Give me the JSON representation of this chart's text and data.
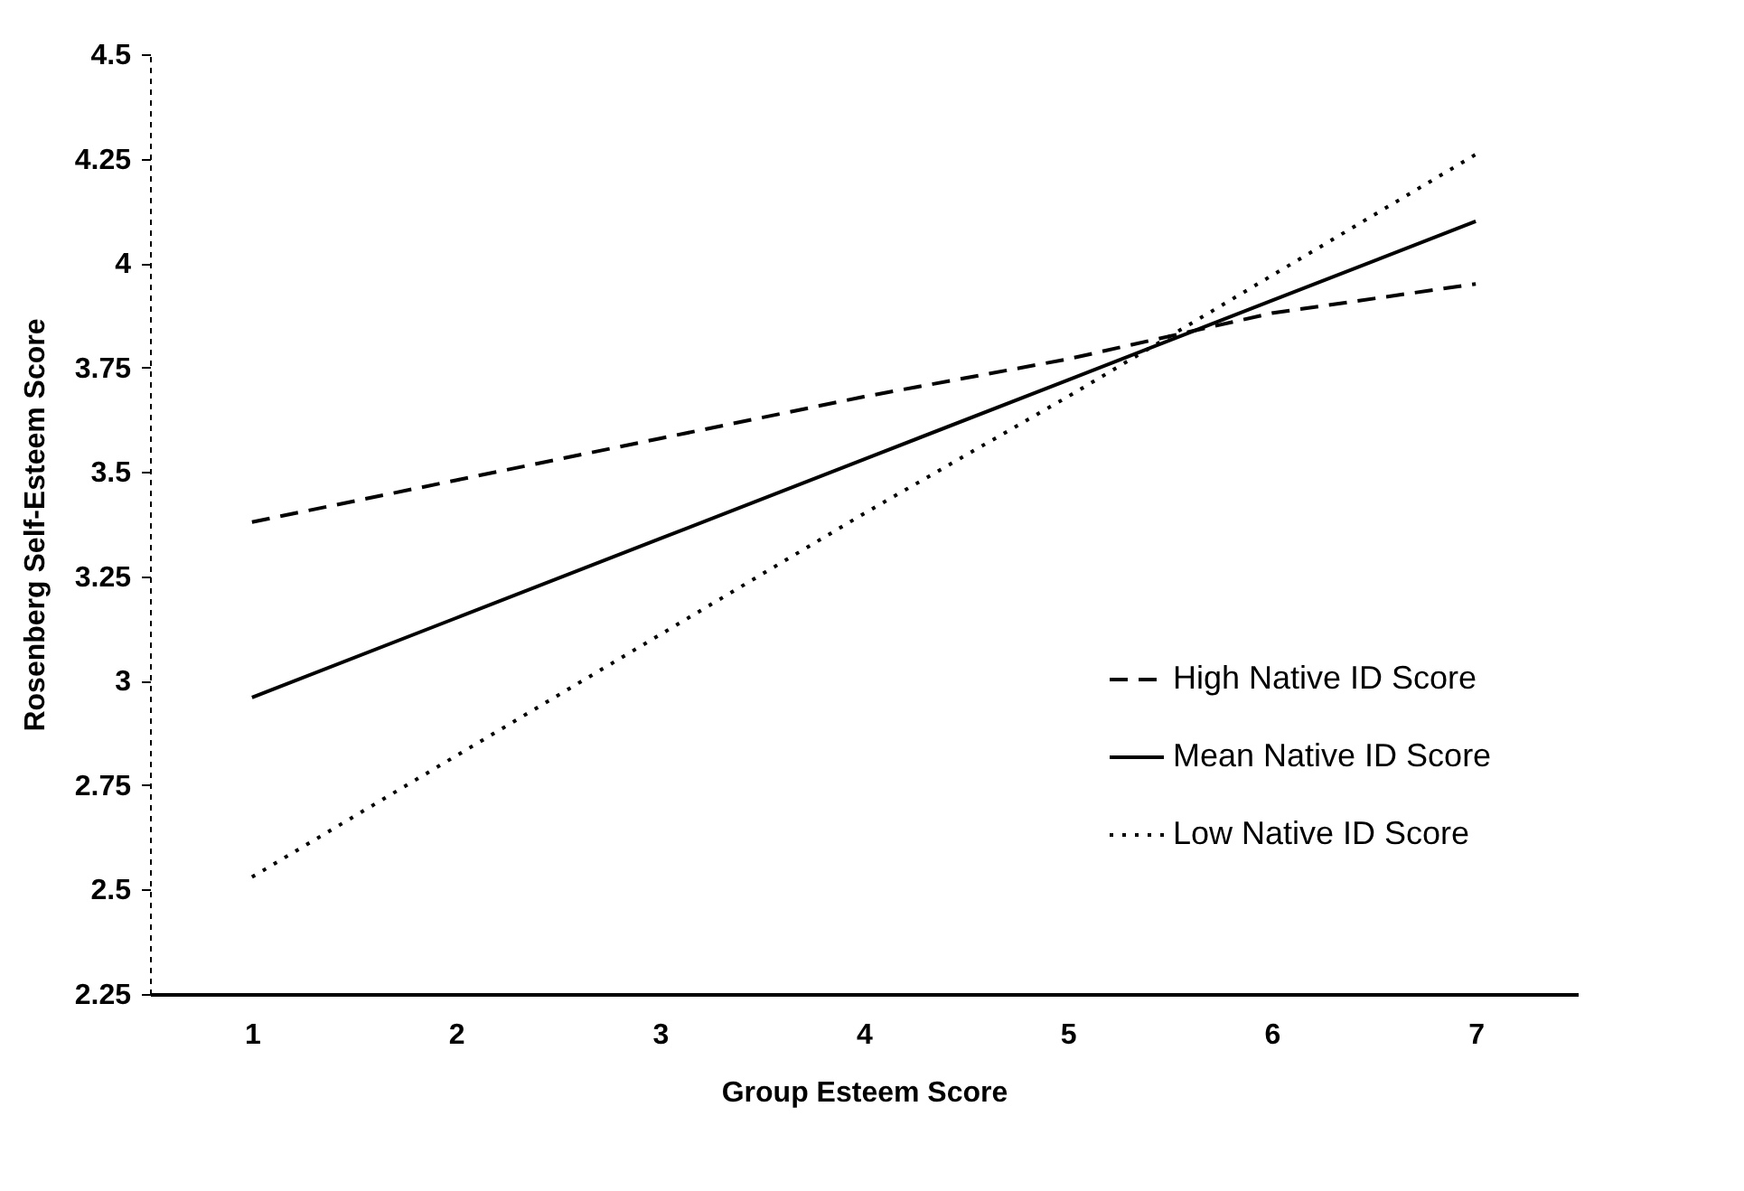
{
  "chart_data": {
    "type": "line",
    "xlabel": "Group Esteem Score",
    "ylabel": "Rosenberg Self-Esteem Score",
    "categories": [
      "1",
      "2",
      "3",
      "4",
      "5",
      "6",
      "7"
    ],
    "series": [
      {
        "name": "High Native ID Score",
        "color": "#000000",
        "line_style": "dashed",
        "values": [
          3.38,
          3.48,
          3.58,
          3.68,
          3.77,
          3.88,
          3.95
        ]
      },
      {
        "name": "Mean Native ID Score",
        "color": "#000000",
        "line_style": "solid",
        "values": [
          2.96,
          3.15,
          3.34,
          3.53,
          3.72,
          3.91,
          4.1
        ]
      },
      {
        "name": "Low Native ID Score",
        "color": "#000000",
        "line_style": "dotted",
        "values": [
          2.53,
          2.82,
          3.11,
          3.4,
          3.68,
          3.97,
          4.26
        ]
      }
    ],
    "ylim": [
      2.25,
      4.5
    ],
    "yticks": [
      2.25,
      2.5,
      2.75,
      3,
      3.25,
      3.5,
      3.75,
      4,
      4.25,
      4.5
    ],
    "grid": false,
    "legend": "right"
  }
}
